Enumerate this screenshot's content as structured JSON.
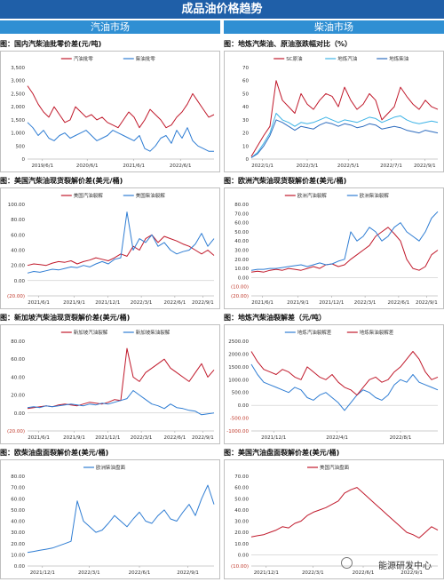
{
  "header": {
    "title": "成品油价格趋势",
    "left_col": "汽油市场",
    "right_col": "柴油市场"
  },
  "watermark": "能源研发中心",
  "chart_data": [
    {
      "id": "p1",
      "type": "line",
      "title": "图：国内汽柴油批零价差(元/吨)",
      "ylim": [
        0,
        3500
      ],
      "yticks": [
        "3,500",
        "3,000",
        "2,500",
        "2,000",
        "1,500",
        "1,000",
        "500",
        "0"
      ],
      "ytickvals": [
        3500,
        3000,
        2500,
        2000,
        1500,
        1000,
        500,
        0
      ],
      "xticks": [
        "2019/6/1",
        "2020/6/1",
        "2021/6/1",
        "2022/6/1"
      ],
      "xtickpos": [
        0.08,
        0.32,
        0.57,
        0.82
      ],
      "series": [
        {
          "name": "汽油批零",
          "color": "#c0192b",
          "values": [
            2800,
            2500,
            2100,
            1800,
            1600,
            2000,
            1700,
            1400,
            1500,
            2000,
            1800,
            1600,
            1700,
            1500,
            1600,
            1400,
            1300,
            1200,
            1500,
            1800,
            1600,
            1200,
            1500,
            1900,
            1700,
            1500,
            1200,
            1300,
            1600,
            1800,
            2100,
            2500,
            2200,
            1900,
            1600,
            1700
          ]
        },
        {
          "name": "柴油批零",
          "color": "#2f7dd3",
          "values": [
            1400,
            1200,
            900,
            1100,
            800,
            700,
            900,
            1000,
            800,
            900,
            1000,
            1100,
            900,
            700,
            800,
            900,
            1100,
            1000,
            900,
            800,
            700,
            900,
            400,
            300,
            500,
            800,
            900,
            600,
            1100,
            800,
            1200,
            700,
            500,
            400,
            300,
            300
          ]
        }
      ]
    },
    {
      "id": "p2",
      "type": "line",
      "title": "图：地炼汽柴油、原油涨跌幅对比（%）",
      "ylim": [
        0,
        70
      ],
      "yticks": [
        "70",
        "60",
        "50",
        "40",
        "30",
        "20",
        "10",
        "0"
      ],
      "ytickvals": [
        70,
        60,
        50,
        40,
        30,
        20,
        10,
        0
      ],
      "xticks": [
        "2022/1/1",
        "2022/3/1",
        "2022/5/1",
        "2022/7/1",
        "2022/9/1"
      ],
      "xtickpos": [
        0.06,
        0.3,
        0.52,
        0.75,
        0.93
      ],
      "series": [
        {
          "name": "SC原油",
          "color": "#c0192b",
          "values": [
            2,
            10,
            18,
            25,
            60,
            45,
            40,
            35,
            50,
            42,
            38,
            45,
            50,
            48,
            40,
            55,
            45,
            38,
            42,
            50,
            45,
            30,
            35,
            40,
            55,
            48,
            42,
            38,
            45,
            40,
            38
          ]
        },
        {
          "name": "地炼汽油",
          "color": "#3db3e6",
          "values": [
            1,
            5,
            12,
            20,
            35,
            30,
            28,
            25,
            28,
            27,
            28,
            30,
            32,
            30,
            28,
            30,
            29,
            28,
            30,
            32,
            31,
            28,
            30,
            32,
            33,
            30,
            28,
            27,
            28,
            29,
            28
          ]
        },
        {
          "name": "地炼柴油",
          "color": "#2f6dbf",
          "values": [
            1,
            4,
            10,
            18,
            30,
            28,
            25,
            22,
            25,
            24,
            23,
            26,
            28,
            27,
            25,
            27,
            26,
            24,
            25,
            27,
            26,
            23,
            24,
            25,
            24,
            22,
            21,
            20,
            22,
            21,
            20
          ]
        }
      ]
    },
    {
      "id": "p3",
      "type": "line",
      "title": "图：美国汽柴油现货裂解价差(美元/桶)",
      "ylim": [
        -20,
        100
      ],
      "yticks": [
        "100.00",
        "80.00",
        "60.00",
        "40.00",
        "20.00",
        "0.00",
        "(20.00)"
      ],
      "ytickvals": [
        100,
        80,
        60,
        40,
        20,
        0,
        -20
      ],
      "xticks": [
        "2021/6/1",
        "2021/9/1",
        "2021/12/1",
        "2022/3/1",
        "2022/6/1",
        "2022/9/1"
      ],
      "xtickpos": [
        0.06,
        0.25,
        0.43,
        0.61,
        0.79,
        0.94
      ],
      "series": [
        {
          "name": "美国汽油裂解",
          "color": "#c0192b",
          "values": [
            20,
            22,
            21,
            20,
            23,
            25,
            24,
            26,
            22,
            25,
            27,
            30,
            28,
            26,
            30,
            35,
            32,
            45,
            40,
            55,
            60,
            50,
            58,
            55,
            52,
            48,
            45,
            40,
            35,
            40,
            33
          ]
        },
        {
          "name": "美国柴油裂解",
          "color": "#2f7dd3",
          "values": [
            10,
            12,
            11,
            13,
            15,
            14,
            16,
            18,
            17,
            20,
            18,
            22,
            25,
            22,
            28,
            30,
            90,
            40,
            55,
            50,
            60,
            45,
            50,
            40,
            35,
            38,
            40,
            48,
            62,
            45,
            55
          ]
        }
      ]
    },
    {
      "id": "p4",
      "type": "line",
      "title": "图：欧洲汽柴油现货裂解价差(美元/桶)",
      "ylim": [
        -20,
        80
      ],
      "yticks": [
        "80.00",
        "70.00",
        "60.00",
        "50.00",
        "40.00",
        "30.00",
        "20.00",
        "10.00",
        "0.00",
        "(10.00)",
        "(20.00)"
      ],
      "ytickvals": [
        80,
        70,
        60,
        50,
        40,
        30,
        20,
        10,
        0,
        -10,
        -20
      ],
      "xticks": [
        "2021/6/1",
        "2021/9/1",
        "2021/12/1",
        "2022/3/1",
        "2022/6/1",
        "2022/9/1"
      ],
      "xtickpos": [
        0.06,
        0.25,
        0.43,
        0.61,
        0.79,
        0.94
      ],
      "series": [
        {
          "name": "欧洲汽油裂解",
          "color": "#c0192b",
          "values": [
            6,
            7,
            6,
            8,
            9,
            8,
            10,
            9,
            8,
            10,
            12,
            10,
            14,
            15,
            12,
            14,
            20,
            25,
            30,
            35,
            45,
            50,
            55,
            48,
            40,
            20,
            10,
            8,
            12,
            25,
            30
          ]
        },
        {
          "name": "欧洲柴油裂解",
          "color": "#2f7dd3",
          "values": [
            8,
            9,
            9,
            10,
            10,
            11,
            12,
            13,
            14,
            12,
            14,
            16,
            14,
            15,
            18,
            20,
            50,
            40,
            45,
            55,
            50,
            40,
            45,
            55,
            60,
            50,
            45,
            40,
            50,
            65,
            72
          ]
        }
      ]
    },
    {
      "id": "p5",
      "type": "line",
      "title": "图：新加坡汽柴油现货裂解价差(美元/桶)",
      "ylim": [
        -20,
        80
      ],
      "yticks": [
        "80.00",
        "60.00",
        "40.00",
        "20.00",
        "0.00",
        "(20.00)"
      ],
      "ytickvals": [
        80,
        60,
        40,
        20,
        0,
        -20
      ],
      "xticks": [
        "2021/6/1",
        "2021/9/1",
        "2021/12/1",
        "2022/3/1",
        "2022/6/1",
        "2022/9/1"
      ],
      "xtickpos": [
        0.06,
        0.25,
        0.43,
        0.61,
        0.79,
        0.94
      ],
      "series": [
        {
          "name": "新加坡汽油裂解",
          "color": "#c0192b",
          "values": [
            5,
            6,
            7,
            8,
            7,
            9,
            10,
            9,
            8,
            10,
            12,
            11,
            10,
            12,
            15,
            14,
            72,
            40,
            35,
            45,
            50,
            55,
            60,
            50,
            45,
            40,
            35,
            45,
            55,
            40,
            48
          ]
        },
        {
          "name": "新加坡柴油裂解",
          "color": "#2f7dd3",
          "values": [
            6,
            7,
            6,
            8,
            7,
            8,
            9,
            10,
            9,
            8,
            10,
            9,
            11,
            10,
            12,
            14,
            16,
            25,
            20,
            15,
            10,
            8,
            5,
            10,
            6,
            5,
            3,
            2,
            -2,
            -1,
            0
          ]
        }
      ]
    },
    {
      "id": "p6",
      "type": "line",
      "title": "图：地炼汽柴油裂解差（元/吨）",
      "ylim": [
        -1000,
        2500
      ],
      "yticks": [
        "2500.00",
        "2000.00",
        "1500.00",
        "1000.00",
        "500.00",
        "0.00",
        "-500.00",
        "-1000.00"
      ],
      "ytickvals": [
        2500,
        2000,
        1500,
        1000,
        500,
        0,
        -500,
        -1000
      ],
      "xticks": [
        "2021/12/1",
        "2022/4/1",
        "2022/8/1"
      ],
      "xtickpos": [
        0.12,
        0.46,
        0.8
      ],
      "series": [
        {
          "name": "地炼汽油裂解差",
          "color": "#2f7dd3",
          "values": [
            1600,
            1200,
            900,
            800,
            700,
            600,
            500,
            700,
            600,
            300,
            200,
            400,
            500,
            300,
            100,
            -200,
            100,
            400,
            600,
            500,
            300,
            200,
            400,
            800,
            1000,
            900,
            1200,
            900,
            800,
            700,
            600
          ]
        },
        {
          "name": "地炼柴油裂解差",
          "color": "#c0192b",
          "values": [
            2100,
            1700,
            1400,
            1300,
            1200,
            1400,
            1300,
            1100,
            1000,
            1500,
            1300,
            1100,
            1000,
            1200,
            900,
            700,
            600,
            400,
            700,
            1000,
            1100,
            900,
            1000,
            1300,
            1500,
            1800,
            2100,
            1800,
            1300,
            1000,
            1100
          ]
        }
      ]
    },
    {
      "id": "p7",
      "type": "line",
      "title": "图：欧柴油盘面裂解价差(美元/桶)",
      "ylim": [
        0,
        80
      ],
      "yticks": [
        "80.00",
        "70.00",
        "60.00",
        "50.00",
        "40.00",
        "30.00",
        "20.00",
        "10.00",
        "0.00"
      ],
      "ytickvals": [
        80,
        70,
        60,
        50,
        40,
        30,
        20,
        10,
        0
      ],
      "xticks": [
        "2021/12/1",
        "2022/3/1",
        "2022/6/1",
        "2022/9/1"
      ],
      "xtickpos": [
        0.08,
        0.33,
        0.6,
        0.86
      ],
      "series": [
        {
          "name": "欧洲柴油盘面",
          "color": "#2f7dd3",
          "values": [
            12,
            13,
            14,
            15,
            16,
            18,
            20,
            22,
            58,
            40,
            35,
            30,
            32,
            38,
            45,
            40,
            35,
            42,
            48,
            40,
            38,
            45,
            50,
            42,
            40,
            48,
            55,
            45,
            60,
            72,
            55
          ]
        }
      ]
    },
    {
      "id": "p8",
      "type": "line",
      "title": "图：美国汽油盘面裂解价差(美元/桶)",
      "ylim": [
        -10,
        70
      ],
      "yticks": [
        "70.00",
        "60.00",
        "50.00",
        "40.00",
        "30.00",
        "20.00",
        "10.00",
        "0.00",
        "(10.00)"
      ],
      "ytickvals": [
        70,
        60,
        50,
        40,
        30,
        20,
        10,
        0,
        -10
      ],
      "xticks": [
        "2021/12/1",
        "2022/3/1",
        "2022/6/1",
        "2022/9/1"
      ],
      "xtickpos": [
        0.08,
        0.33,
        0.6,
        0.86
      ],
      "series": [
        {
          "name": "美国汽油盘面",
          "color": "#c0192b",
          "values": [
            16,
            17,
            18,
            20,
            22,
            25,
            24,
            28,
            30,
            35,
            38,
            40,
            42,
            45,
            48,
            55,
            58,
            60,
            55,
            50,
            45,
            40,
            35,
            30,
            25,
            20,
            18,
            15,
            20,
            25,
            22
          ]
        }
      ]
    }
  ]
}
